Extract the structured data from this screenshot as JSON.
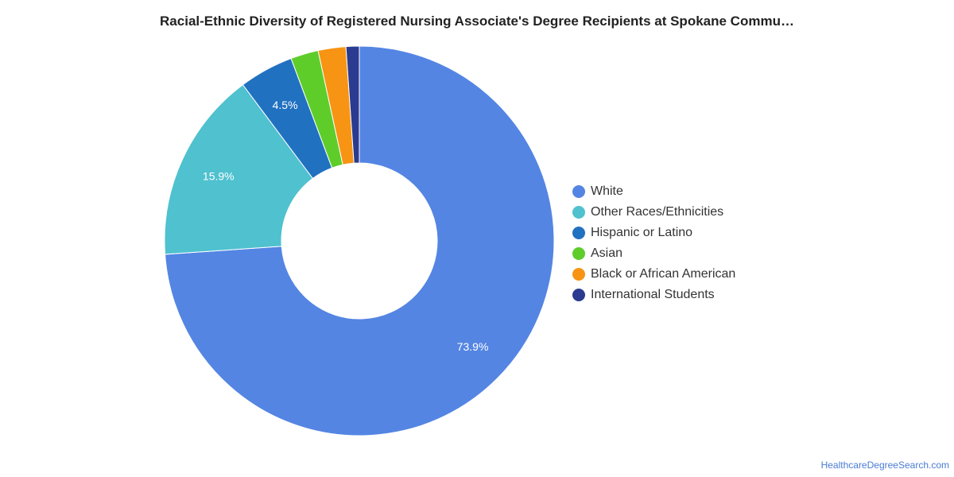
{
  "chart_data": {
    "type": "pie",
    "title": "Racial-Ethnic Diversity of Registered Nursing Associate's Degree Recipients at Spokane Commu…",
    "donut": true,
    "legend_position": "right",
    "slices": [
      {
        "name": "White",
        "value": 73.9,
        "label": "73.9%",
        "color": "#5485e3"
      },
      {
        "name": "Other Races/Ethnicities",
        "value": 15.9,
        "label": "15.9%",
        "color": "#4fc1cf"
      },
      {
        "name": "Hispanic or Latino",
        "value": 4.5,
        "label": "4.5%",
        "color": "#2171c1"
      },
      {
        "name": "Asian",
        "value": 2.3,
        "label": "",
        "color": "#5ecd2a"
      },
      {
        "name": "Black or African American",
        "value": 2.3,
        "label": "",
        "color": "#f79413"
      },
      {
        "name": "International Students",
        "value": 1.1,
        "label": "",
        "color": "#2b3b8f"
      }
    ]
  },
  "footer": {
    "source": "HealthcareDegreeSearch.com"
  }
}
